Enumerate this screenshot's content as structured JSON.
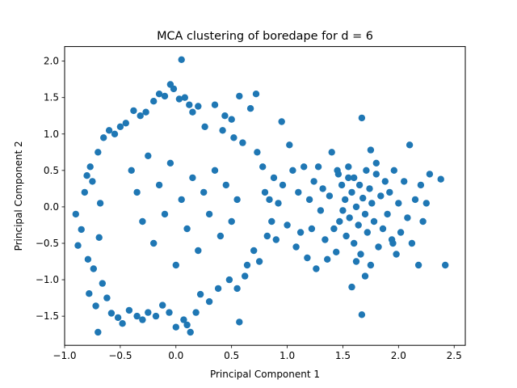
{
  "chart_data": {
    "type": "scatter",
    "title": "MCA clustering of boredape for d = 6",
    "xlabel": "Principal Component 1",
    "ylabel": "Principal Component 2",
    "xlim": [
      -1.0,
      2.6
    ],
    "ylim": [
      -1.9,
      2.2
    ],
    "xticks": [
      -1.0,
      -0.5,
      0.0,
      0.5,
      1.0,
      1.5,
      2.0,
      2.5
    ],
    "xtick_labels": [
      "−1.0",
      "−0.5",
      "0.0",
      "0.5",
      "1.0",
      "1.5",
      "2.0",
      "2.5"
    ],
    "yticks": [
      -1.5,
      -1.0,
      -0.5,
      0.0,
      0.5,
      1.0,
      1.5,
      2.0
    ],
    "ytick_labels": [
      "−1.5",
      "−1.0",
      "−0.5",
      "0.0",
      "0.5",
      "1.0",
      "1.5",
      "2.0"
    ],
    "grid": false,
    "legend": "none",
    "color": "#1f77b4",
    "series": [
      {
        "points": [
          [
            -0.9,
            -0.1
          ],
          [
            -0.88,
            -0.53
          ],
          [
            -0.85,
            -0.31
          ],
          [
            -0.82,
            0.2
          ],
          [
            -0.8,
            0.43
          ],
          [
            -0.79,
            -0.72
          ],
          [
            -0.78,
            -1.19
          ],
          [
            -0.77,
            0.55
          ],
          [
            -0.75,
            0.35
          ],
          [
            -0.74,
            -0.85
          ],
          [
            -0.72,
            -1.36
          ],
          [
            -0.7,
            -1.72
          ],
          [
            -0.7,
            0.75
          ],
          [
            -0.69,
            -0.42
          ],
          [
            -0.68,
            0.05
          ],
          [
            -0.66,
            -1.05
          ],
          [
            -0.65,
            0.95
          ],
          [
            -0.62,
            -1.25
          ],
          [
            -0.6,
            1.05
          ],
          [
            -0.58,
            -1.46
          ],
          [
            -0.55,
            1.0
          ],
          [
            -0.52,
            -1.52
          ],
          [
            -0.5,
            1.1
          ],
          [
            -0.48,
            -1.6
          ],
          [
            -0.45,
            1.15
          ],
          [
            -0.42,
            -1.42
          ],
          [
            -0.38,
            1.32
          ],
          [
            -0.35,
            -1.5
          ],
          [
            -0.32,
            1.25
          ],
          [
            -0.3,
            -1.55
          ],
          [
            -0.27,
            1.3
          ],
          [
            -0.25,
            -1.45
          ],
          [
            -0.2,
            1.45
          ],
          [
            -0.18,
            -1.5
          ],
          [
            -0.15,
            1.55
          ],
          [
            -0.12,
            -1.35
          ],
          [
            -0.1,
            1.52
          ],
          [
            -0.06,
            -1.45
          ],
          [
            -0.05,
            1.68
          ],
          [
            -0.02,
            1.62
          ],
          [
            0.0,
            -1.65
          ],
          [
            0.03,
            1.48
          ],
          [
            0.05,
            2.02
          ],
          [
            0.07,
            -1.55
          ],
          [
            0.08,
            1.5
          ],
          [
            0.1,
            -1.62
          ],
          [
            0.12,
            1.4
          ],
          [
            0.13,
            -1.72
          ],
          [
            0.15,
            1.3
          ],
          [
            0.18,
            -1.45
          ],
          [
            0.2,
            1.38
          ],
          [
            0.22,
            -1.2
          ],
          [
            0.26,
            1.1
          ],
          [
            0.3,
            -1.3
          ],
          [
            0.35,
            1.4
          ],
          [
            0.38,
            -1.12
          ],
          [
            0.42,
            1.05
          ],
          [
            0.44,
            1.25
          ],
          [
            0.48,
            -1.0
          ],
          [
            0.5,
            1.2
          ],
          [
            0.52,
            0.95
          ],
          [
            0.55,
            -1.12
          ],
          [
            0.57,
            1.52
          ],
          [
            0.57,
            -1.58
          ],
          [
            0.6,
            0.88
          ],
          [
            0.62,
            -0.95
          ],
          [
            0.64,
            -0.8
          ],
          [
            0.67,
            1.35
          ],
          [
            0.7,
            -0.6
          ],
          [
            0.72,
            1.55
          ],
          [
            0.73,
            0.75
          ],
          [
            0.75,
            -0.75
          ],
          [
            0.78,
            0.55
          ],
          [
            0.8,
            0.2
          ],
          [
            0.82,
            -0.4
          ],
          [
            0.84,
            0.1
          ],
          [
            0.86,
            -0.2
          ],
          [
            0.88,
            0.4
          ],
          [
            0.9,
            -0.45
          ],
          [
            0.92,
            0.05
          ],
          [
            0.95,
            1.17
          ],
          [
            0.96,
            0.3
          ],
          [
            1.0,
            -0.25
          ],
          [
            1.02,
            0.85
          ],
          [
            1.05,
            0.5
          ],
          [
            1.08,
            -0.55
          ],
          [
            1.1,
            0.2
          ],
          [
            1.12,
            -0.35
          ],
          [
            1.15,
            0.55
          ],
          [
            1.18,
            -0.7
          ],
          [
            1.2,
            0.1
          ],
          [
            1.22,
            -0.3
          ],
          [
            1.24,
            0.35
          ],
          [
            1.26,
            -0.85
          ],
          [
            1.28,
            0.55
          ],
          [
            1.3,
            -0.05
          ],
          [
            1.32,
            0.25
          ],
          [
            1.34,
            -0.45
          ],
          [
            1.36,
            -0.72
          ],
          [
            1.38,
            0.15
          ],
          [
            1.4,
            0.75
          ],
          [
            1.42,
            -0.3
          ],
          [
            1.44,
            -0.62
          ],
          [
            1.46,
            0.45
          ],
          [
            1.47,
            -0.2
          ],
          [
            1.49,
            0.3
          ],
          [
            1.5,
            -0.05
          ],
          [
            1.52,
            0.1
          ],
          [
            1.53,
            -0.4
          ],
          [
            1.55,
            0.55
          ],
          [
            1.56,
            -0.15
          ],
          [
            1.58,
            0.2
          ],
          [
            1.6,
            -0.5
          ],
          [
            1.6,
            0.4
          ],
          [
            1.62,
            0.0
          ],
          [
            1.64,
            -0.25
          ],
          [
            1.65,
            0.3
          ],
          [
            1.66,
            -0.65
          ],
          [
            1.67,
            -1.48
          ],
          [
            1.68,
            0.12
          ],
          [
            1.7,
            -0.1
          ],
          [
            1.71,
            0.5
          ],
          [
            1.72,
            -0.35
          ],
          [
            1.74,
            0.25
          ],
          [
            1.75,
            -0.8
          ],
          [
            1.76,
            0.05
          ],
          [
            1.78,
            -0.2
          ],
          [
            1.8,
            0.45
          ],
          [
            1.82,
            -0.55
          ],
          [
            1.84,
            0.15
          ],
          [
            1.86,
            -0.3
          ],
          [
            1.88,
            0.35
          ],
          [
            1.9,
            -0.1
          ],
          [
            1.92,
            0.2
          ],
          [
            1.94,
            -0.45
          ],
          [
            1.96,
            0.5
          ],
          [
            1.98,
            -0.65
          ],
          [
            2.0,
            0.05
          ],
          [
            2.02,
            -0.35
          ],
          [
            2.05,
            0.35
          ],
          [
            2.08,
            -0.15
          ],
          [
            2.1,
            0.85
          ],
          [
            2.12,
            -0.5
          ],
          [
            2.15,
            0.1
          ],
          [
            2.18,
            -0.8
          ],
          [
            2.2,
            0.3
          ],
          [
            2.22,
            -0.2
          ],
          [
            2.25,
            0.05
          ],
          [
            2.28,
            0.45
          ],
          [
            2.38,
            0.38
          ],
          [
            2.42,
            -0.8
          ],
          [
            1.67,
            1.22
          ],
          [
            1.75,
            0.78
          ],
          [
            1.55,
            0.4
          ],
          [
            1.62,
            -0.75
          ],
          [
            1.58,
            -1.1
          ],
          [
            1.7,
            -0.95
          ],
          [
            1.95,
            -0.5
          ],
          [
            1.45,
            0.5
          ],
          [
            1.8,
            0.6
          ],
          [
            -0.4,
            0.5
          ],
          [
            -0.35,
            0.2
          ],
          [
            -0.3,
            -0.2
          ],
          [
            -0.25,
            0.7
          ],
          [
            -0.2,
            -0.5
          ],
          [
            -0.15,
            0.3
          ],
          [
            -0.1,
            -0.1
          ],
          [
            -0.05,
            0.6
          ],
          [
            0.0,
            -0.8
          ],
          [
            0.05,
            0.1
          ],
          [
            0.1,
            -0.3
          ],
          [
            0.15,
            0.4
          ],
          [
            0.2,
            -0.6
          ],
          [
            0.25,
            0.2
          ],
          [
            0.3,
            -0.1
          ],
          [
            0.35,
            0.5
          ],
          [
            0.4,
            -0.4
          ],
          [
            0.45,
            0.3
          ],
          [
            0.5,
            -0.2
          ],
          [
            0.55,
            0.1
          ]
        ]
      }
    ]
  }
}
